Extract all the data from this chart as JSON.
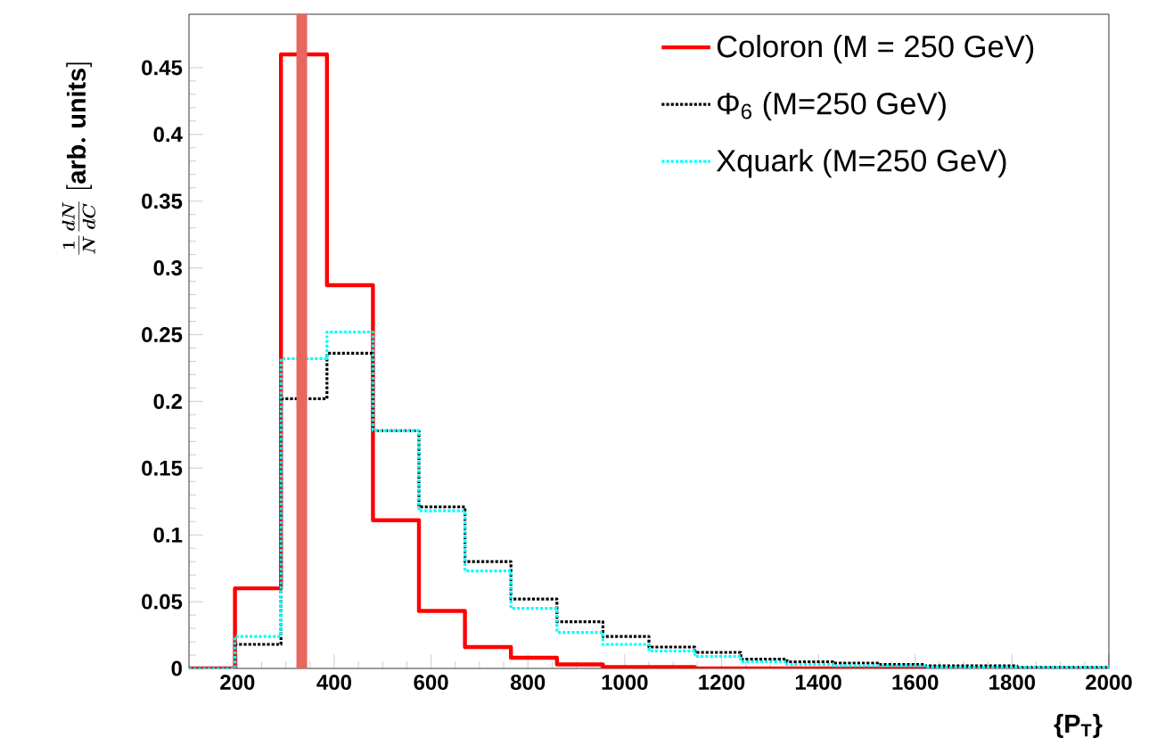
{
  "chart_data": {
    "type": "histogram",
    "bins": [
      100,
      195,
      290,
      385,
      480,
      575,
      670,
      765,
      860,
      955,
      1050,
      1145,
      1240,
      1335,
      1430,
      1525,
      1620,
      1715,
      1810,
      1905,
      2000
    ],
    "series": [
      {
        "name": "Coloron (M = 250 GeV)",
        "color": "#ff0000",
        "line_style": "solid",
        "values": [
          0,
          0.06,
          0.46,
          0.287,
          0.111,
          0.043,
          0.016,
          0.008,
          0.003,
          0.001,
          0.001,
          0,
          0,
          0,
          0,
          0,
          0,
          0,
          0,
          0
        ]
      },
      {
        "name": "Φ$_{6}$ (M=250 GeV)",
        "color": "#000000",
        "line_style": "dotted",
        "values": [
          0,
          0.018,
          0.202,
          0.236,
          0.178,
          0.121,
          0.08,
          0.052,
          0.035,
          0.024,
          0.016,
          0.012,
          0.007,
          0.005,
          0.004,
          0.003,
          0.002,
          0.002,
          0.001,
          0.001
        ]
      },
      {
        "name": "Xquark (M=250 GeV)",
        "color": "#00ffff",
        "line_style": "dotted",
        "values": [
          0,
          0.024,
          0.232,
          0.252,
          0.178,
          0.118,
          0.073,
          0.045,
          0.027,
          0.018,
          0.013,
          0.009,
          0.005,
          0.003,
          0.002,
          0.002,
          0.001,
          0.001,
          0.001,
          0.001
        ]
      }
    ],
    "xlim": [
      100,
      2000
    ],
    "ylim": [
      0,
      0.49
    ],
    "xticks": [
      200,
      400,
      600,
      800,
      1000,
      1200,
      1400,
      1600,
      1800,
      2000
    ],
    "yticks": [
      0,
      0.05,
      0.1,
      0.15,
      0.2,
      0.25,
      0.3,
      0.35,
      0.4,
      0.45
    ],
    "xlabel": "{P$_{T}$}",
    "ylabel": "\\frac{1}{N}\\frac{dN}{dC}\\ \\mathrm{[arb.\\ units]}",
    "legend": "top right",
    "ref_lines": [
      {
        "axis": "x",
        "value": 333,
        "color": "#e8665e"
      }
    ]
  }
}
